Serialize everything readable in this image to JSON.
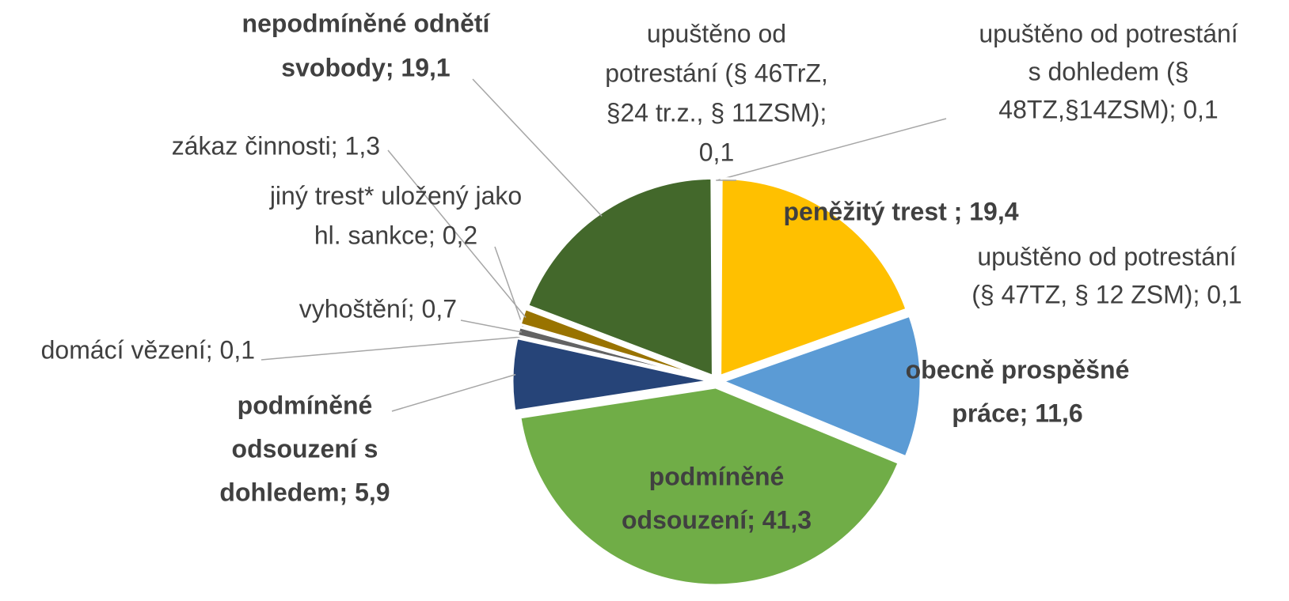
{
  "chart_data": {
    "type": "pie",
    "labels": [
      [
        "upuštěno od potrestání",
        "s dohledem (§",
        "48TZ,§14ZSM); 0,1"
      ],
      [
        "peněžitý trest ; 19,4"
      ],
      [
        "upuštěno od potrestání",
        "(§ 47TZ, § 12 ZSM); 0,1"
      ],
      [
        "obecně prospěšné",
        "práce; 11,6"
      ],
      [
        "podmíněné",
        "odsouzení; 41,3"
      ],
      [
        "podmíněné",
        "odsouzení  s",
        "dohledem; 5,9"
      ],
      [
        "domácí vězení; 0,1"
      ],
      [
        "vyhoštění; 0,7"
      ],
      [
        "jiný trest* uložený jako",
        "hl. sankce; 0,2"
      ],
      [
        "zákaz činnosti; 1,3"
      ],
      [
        "nepodmíněné odnětí",
        "svobody; 19,1"
      ],
      [
        "upuštěno od",
        "potrestání (§ 46TrZ,",
        "§24 tr.z., § 11ZSM);",
        "0,1"
      ]
    ],
    "values": [
      0.1,
      19.4,
      0.1,
      11.6,
      41.3,
      5.9,
      0.1,
      0.7,
      0.2,
      1.3,
      19.1,
      0.1
    ],
    "colors": [
      "#a5a5a5",
      "#ffc000",
      "#4472c4",
      "#5b9bd5",
      "#70ad47",
      "#264478",
      "#7f7f7f",
      "#636363",
      "#b4b4b4",
      "#997300",
      "#43682b",
      "#9e480e"
    ]
  }
}
